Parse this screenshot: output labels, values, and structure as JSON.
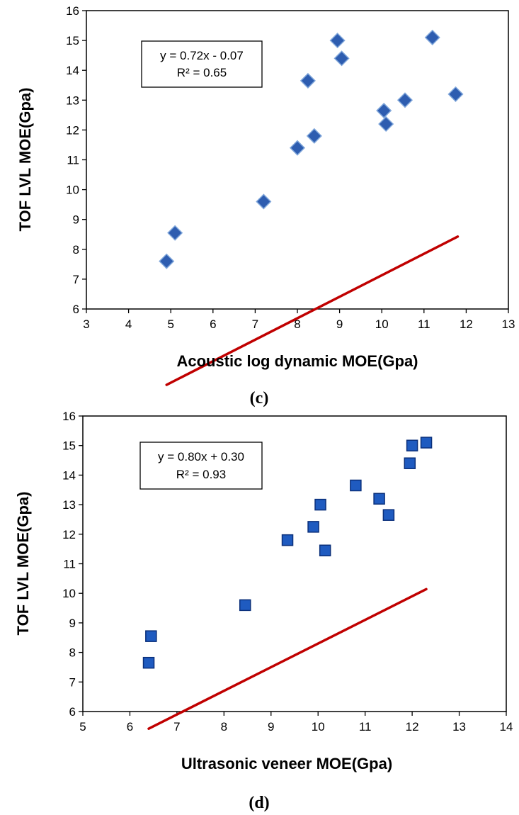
{
  "chart_data": [
    {
      "type": "scatter",
      "panel_label": "(c)",
      "xlabel": "Acoustic log dynamic MOE(Gpa)",
      "ylabel": "TOF LVL MOE(Gpa)",
      "xlim": [
        3,
        13
      ],
      "ylim": [
        6,
        16
      ],
      "xticks": [
        3,
        4,
        5,
        6,
        7,
        8,
        9,
        10,
        11,
        12,
        13
      ],
      "yticks": [
        6,
        7,
        8,
        9,
        10,
        11,
        12,
        13,
        14,
        15,
        16
      ],
      "marker": "diamond",
      "marker_color": "#2E5DB0",
      "trendline_color": "#C00000",
      "grid": false,
      "legend": "none",
      "equation_lines": [
        "y = 0.72x  - 0.07",
        "R² = 0.65"
      ],
      "trendline": {
        "slope": 0.72,
        "intercept": -0.07,
        "x_range": [
          4.9,
          11.8
        ]
      },
      "points": [
        {
          "x": 4.9,
          "y": 7.6
        },
        {
          "x": 5.1,
          "y": 8.55
        },
        {
          "x": 7.2,
          "y": 9.6
        },
        {
          "x": 8.0,
          "y": 11.4
        },
        {
          "x": 8.4,
          "y": 11.8
        },
        {
          "x": 8.25,
          "y": 13.65
        },
        {
          "x": 8.95,
          "y": 15.0
        },
        {
          "x": 9.05,
          "y": 14.4
        },
        {
          "x": 10.05,
          "y": 12.65
        },
        {
          "x": 10.1,
          "y": 12.2
        },
        {
          "x": 10.55,
          "y": 13.0
        },
        {
          "x": 11.2,
          "y": 15.1
        },
        {
          "x": 11.75,
          "y": 13.2
        }
      ]
    },
    {
      "type": "scatter",
      "panel_label": "(d)",
      "xlabel": "Ultrasonic veneer MOE(Gpa)",
      "ylabel": "TOF LVL MOE(Gpa)",
      "xlim": [
        5,
        14
      ],
      "ylim": [
        6,
        16
      ],
      "xticks": [
        5,
        6,
        7,
        8,
        9,
        10,
        11,
        12,
        13,
        14
      ],
      "yticks": [
        6,
        7,
        8,
        9,
        10,
        11,
        12,
        13,
        14,
        15,
        16
      ],
      "marker": "square",
      "marker_color": "#1F5BC0",
      "trendline_color": "#C00000",
      "grid": false,
      "legend": "none",
      "equation_lines": [
        "y = 0.80x  + 0.30",
        "R² = 0.93"
      ],
      "trendline": {
        "slope": 0.8,
        "intercept": 0.3,
        "x_range": [
          6.4,
          12.3
        ]
      },
      "points": [
        {
          "x": 6.4,
          "y": 7.65
        },
        {
          "x": 6.45,
          "y": 8.55
        },
        {
          "x": 8.45,
          "y": 9.6
        },
        {
          "x": 9.35,
          "y": 11.8
        },
        {
          "x": 9.9,
          "y": 12.25
        },
        {
          "x": 10.05,
          "y": 13.0
        },
        {
          "x": 10.15,
          "y": 11.45
        },
        {
          "x": 10.8,
          "y": 13.65
        },
        {
          "x": 11.3,
          "y": 13.2
        },
        {
          "x": 11.5,
          "y": 12.65
        },
        {
          "x": 11.95,
          "y": 14.4
        },
        {
          "x": 12.0,
          "y": 15.0
        },
        {
          "x": 12.3,
          "y": 15.1
        }
      ]
    }
  ]
}
